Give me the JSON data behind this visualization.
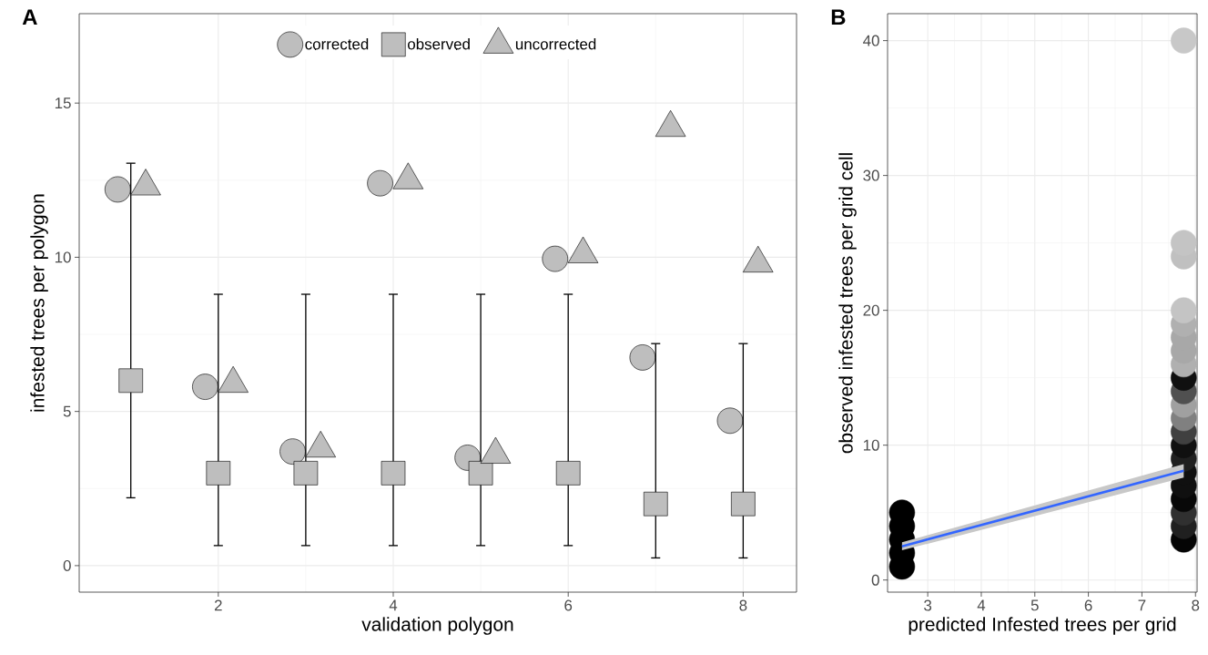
{
  "chart_data": [
    {
      "type": "scatter",
      "title": "A",
      "xlabel": "validation polygon",
      "ylabel": "infested trees per polygon",
      "xlim": [
        0.41,
        8.61
      ],
      "ylim": [
        -0.86,
        17.9
      ],
      "xticks": [
        2,
        4,
        6,
        8
      ],
      "yticks": [
        0,
        5,
        10,
        15
      ],
      "grid": true,
      "legend": "top",
      "series": [
        {
          "name": "corrected",
          "marker": "circle",
          "color": "#bebebe",
          "x": [
            0.85,
            1.85,
            2.85,
            3.85,
            4.85,
            5.85,
            6.85,
            7.85
          ],
          "values": [
            12.2,
            5.8,
            3.7,
            12.4,
            3.5,
            9.95,
            6.75,
            4.7
          ]
        },
        {
          "name": "observed",
          "marker": "square",
          "color": "#bebebe",
          "x": [
            1,
            2,
            3,
            4,
            5,
            6,
            7,
            8
          ],
          "values": [
            6,
            3,
            3,
            3,
            3,
            3,
            2,
            2
          ],
          "errors": [
            [
              2.2,
              13.05
            ],
            [
              0.65,
              8.8
            ],
            [
              0.65,
              8.8
            ],
            [
              0.65,
              8.8
            ],
            [
              0.65,
              8.8
            ],
            [
              0.65,
              8.8
            ],
            [
              0.25,
              7.2
            ],
            [
              0.25,
              7.2
            ]
          ]
        },
        {
          "name": "uncorrected",
          "marker": "triangle",
          "color": "#bebebe",
          "x": [
            1.17,
            2.17,
            3.17,
            4.17,
            5.17,
            6.17,
            7.17,
            8.17
          ],
          "values": [
            12.3,
            5.9,
            3.8,
            12.5,
            3.6,
            10.1,
            14.2,
            9.8
          ]
        }
      ]
    },
    {
      "type": "scatter",
      "title": "B",
      "xlabel": "predicted Infested trees per grid",
      "ylabel": "observed infested trees per grid cell",
      "xlim": [
        2.25,
        8.03
      ],
      "ylim": [
        -0.9,
        42
      ],
      "xticks": [
        3,
        4,
        5,
        6,
        7,
        8
      ],
      "yticks": [
        0,
        10,
        20,
        30,
        40
      ],
      "grid": true,
      "series": [
        {
          "marker": "circle",
          "x": [
            2.52,
            2.52,
            2.52,
            2.52,
            2.52,
            7.78,
            7.78,
            7.78,
            7.78,
            7.78,
            7.78,
            7.78,
            7.78,
            7.78,
            7.78,
            7.78,
            7.78,
            7.78,
            7.78,
            7.78,
            7.78,
            7.78,
            7.78,
            7.78,
            7.78,
            7.78
          ],
          "values": [
            1,
            2,
            3,
            4,
            5,
            3,
            4,
            5,
            6,
            7,
            8,
            9,
            10,
            11,
            12,
            13,
            14,
            15,
            16,
            17,
            18,
            19,
            20,
            24,
            25,
            40
          ],
          "colors": [
            "#000000",
            "#000000",
            "#000000",
            "#000000",
            "#000000",
            "#050505",
            "#202020",
            "#303030",
            "#080808",
            "#101010",
            "#101010",
            "#202020",
            "#101010",
            "#404040",
            "#808080",
            "#a0a0a0",
            "#505050",
            "#101010",
            "#b0b0b0",
            "#a8a8a8",
            "#a8a8a8",
            "#b0b0b0",
            "#c4c4c4",
            "#c0c0c0",
            "#c4c4c4",
            "#c8c8c8"
          ]
        },
        {
          "type": "line",
          "x": [
            2.52,
            7.78
          ],
          "values": [
            2.5,
            8.1
          ],
          "lower": [
            2.2,
            7.6
          ],
          "upper": [
            2.8,
            8.6
          ],
          "color": "#3366ff",
          "line_style": "solid"
        }
      ]
    }
  ]
}
